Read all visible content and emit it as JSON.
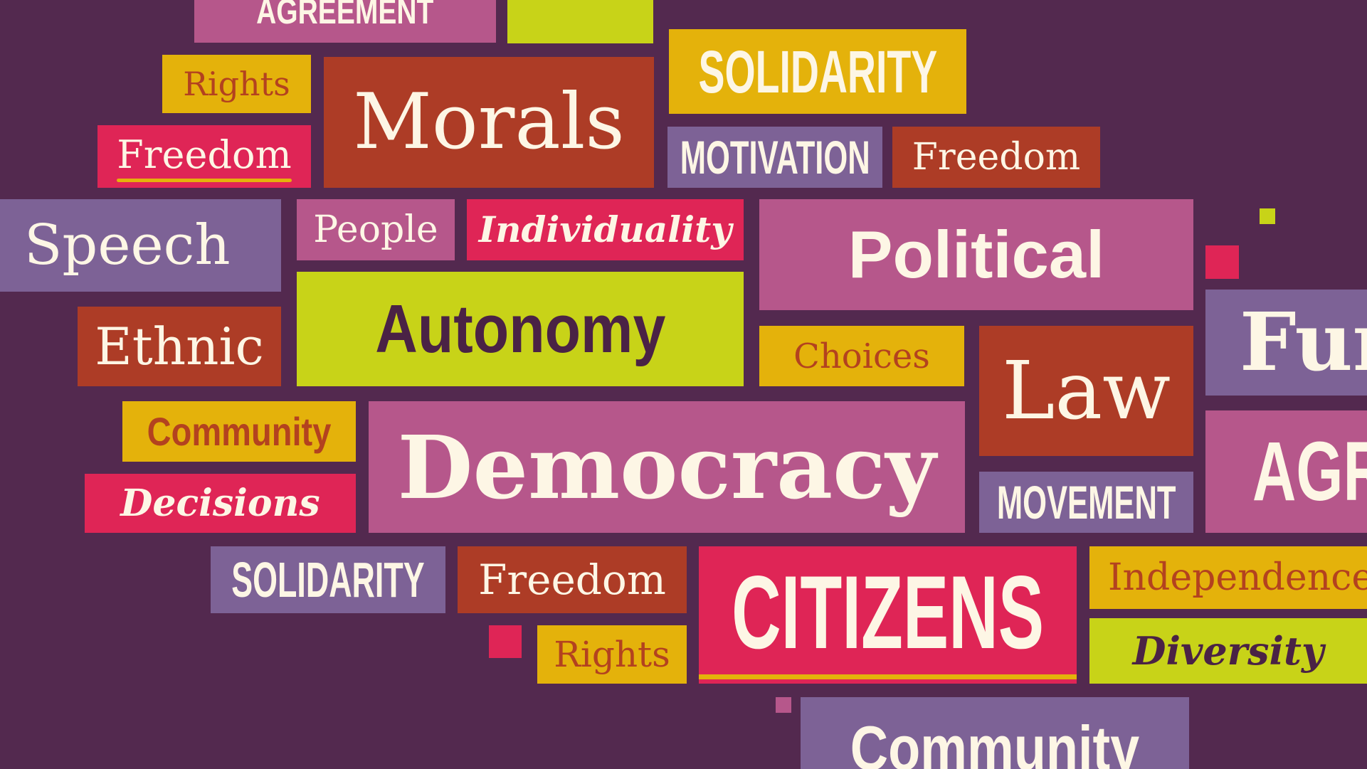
{
  "colors": {
    "background": "#53294f",
    "mauve": "#b6578b",
    "lime": "#c8d318",
    "gold": "#e4b20b",
    "rust": "#ad3c26",
    "crimson": "#df2556",
    "purple": "#7d6296",
    "cream": "#fdf6e5",
    "dark_plum": "#4a2245",
    "rust_text": "#b3421f"
  },
  "words": {
    "agreement_top": "AGREEMENT",
    "rights_top": "Rights",
    "morals": "Morals",
    "solidarity_top": "SOLIDARITY",
    "freedom_left": "Freedom",
    "motivation": "MOTIVATION",
    "freedom_right": "Freedom",
    "speech": "Speech",
    "people": "People",
    "individuality": "Individuality",
    "political": "Political",
    "ethnic": "Ethnic",
    "autonomy": "Autonomy",
    "choices": "Choices",
    "law": "Law",
    "fun_partial": "Fur",
    "community_left": "Community",
    "democracy": "Democracy",
    "agr_partial": "AGR",
    "decisions": "Decisions",
    "movement": "MOVEMENT",
    "solidarity_bottom": "SOLIDARITY",
    "freedom_bottom": "Freedom",
    "citizens": "CITIZENS",
    "independence": "Independence",
    "rights_bottom": "Rights",
    "diversity": "Diversity",
    "community_bottom": "Community"
  }
}
